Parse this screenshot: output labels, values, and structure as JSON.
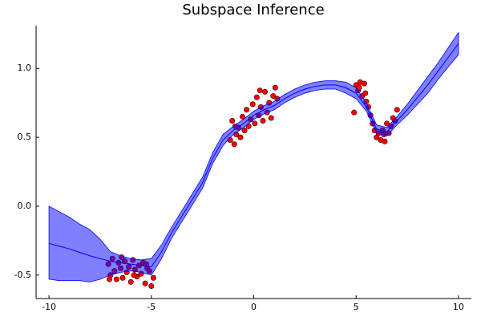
{
  "chart_data": {
    "type": "line",
    "title": "Subspace Inference",
    "x": [
      -10,
      -9.5,
      -9,
      -8.5,
      -8,
      -7.5,
      -7,
      -6.5,
      -6,
      -5.5,
      -5,
      -4.5,
      -4,
      -3.5,
      -3,
      -2.5,
      -2,
      -1.5,
      -1,
      -0.5,
      0,
      0.5,
      1,
      1.5,
      2,
      2.5,
      3,
      3.5,
      4,
      4.5,
      5,
      5.5,
      6,
      6.5,
      7,
      7.5,
      8,
      8.5,
      9,
      9.5,
      10
    ],
    "series": [
      {
        "color": "#0000ff",
        "band_alpha": 0.5,
        "values": [
          -0.27,
          -0.29,
          -0.31,
          -0.335,
          -0.36,
          -0.38,
          -0.4,
          -0.41,
          -0.42,
          -0.43,
          -0.44,
          -0.33,
          -0.19,
          -0.07,
          0.05,
          0.17,
          0.35,
          0.48,
          0.55,
          0.6,
          0.66,
          0.7,
          0.73,
          0.78,
          0.82,
          0.85,
          0.87,
          0.88,
          0.88,
          0.86,
          0.82,
          0.72,
          0.56,
          0.54,
          0.62,
          0.7,
          0.79,
          0.88,
          0.98,
          1.08,
          1.18
        ],
        "upper": [
          0,
          -0.04,
          -0.08,
          -0.13,
          -0.17,
          -0.24,
          -0.33,
          -0.36,
          -0.38,
          -0.39,
          -0.38,
          -0.28,
          -0.15,
          -0.03,
          0.09,
          0.21,
          0.39,
          0.52,
          0.58,
          0.63,
          0.69,
          0.73,
          0.76,
          0.81,
          0.85,
          0.88,
          0.9,
          0.91,
          0.91,
          0.9,
          0.86,
          0.75,
          0.59,
          0.57,
          0.65,
          0.74,
          0.84,
          0.94,
          1.04,
          1.15,
          1.26
        ],
        "lower": [
          -0.53,
          -0.54,
          -0.54,
          -0.54,
          -0.55,
          -0.53,
          -0.5,
          -0.48,
          -0.47,
          -0.48,
          -0.5,
          -0.38,
          -0.23,
          -0.11,
          0.01,
          0.13,
          0.31,
          0.44,
          0.52,
          0.57,
          0.63,
          0.67,
          0.7,
          0.75,
          0.79,
          0.82,
          0.84,
          0.85,
          0.85,
          0.82,
          0.78,
          0.69,
          0.53,
          0.51,
          0.59,
          0.66,
          0.74,
          0.82,
          0.92,
          1.01,
          1.1
        ]
      }
    ],
    "scatter": {
      "color": "#ff0000",
      "x": [
        -7.1,
        -7.0,
        -6.9,
        -6.8,
        -6.7,
        -6.6,
        -6.5,
        -6.4,
        -6.3,
        -6.2,
        -6.1,
        -6.0,
        -5.9,
        -5.8,
        -5.7,
        -5.6,
        -5.5,
        -5.4,
        -5.3,
        -5.2,
        -5.1,
        -5.0,
        -4.9,
        -7.05,
        -6.45,
        -5.85,
        -5.25,
        -1.15,
        -1.05,
        -0.95,
        -0.85,
        -0.75,
        -0.65,
        -0.55,
        -0.45,
        -0.35,
        -0.25,
        -0.15,
        -0.05,
        0.05,
        0.15,
        0.25,
        0.35,
        0.45,
        0.55,
        0.65,
        0.75,
        0.85,
        0.95,
        1.05,
        1.15,
        -0.9,
        0.3,
        4.9,
        5.0,
        5.1,
        5.2,
        5.3,
        5.4,
        5.5,
        5.6,
        5.7,
        5.8,
        5.9,
        6.0,
        6.1,
        6.2,
        6.3,
        6.4,
        6.5,
        6.6,
        6.7,
        6.8,
        6.9,
        7.0,
        5.15,
        5.45,
        6.35
      ],
      "y": [
        -0.42,
        -0.5,
        -0.38,
        -0.47,
        -0.53,
        -0.41,
        -0.45,
        -0.52,
        -0.4,
        -0.48,
        -0.44,
        -0.55,
        -0.39,
        -0.46,
        -0.51,
        -0.43,
        -0.49,
        -0.41,
        -0.56,
        -0.45,
        -0.47,
        -0.58,
        -0.52,
        -0.53,
        -0.37,
        -0.5,
        -0.42,
        0.48,
        0.62,
        0.45,
        0.52,
        0.57,
        0.5,
        0.65,
        0.55,
        0.7,
        0.58,
        0.63,
        0.74,
        0.6,
        0.79,
        0.66,
        0.72,
        0.62,
        0.83,
        0.68,
        0.75,
        0.64,
        0.8,
        0.86,
        0.78,
        0.58,
        0.84,
        0.68,
        0.88,
        0.84,
        0.9,
        0.8,
        0.89,
        0.76,
        0.72,
        0.66,
        0.6,
        0.55,
        0.5,
        0.53,
        0.48,
        0.55,
        0.47,
        0.6,
        0.53,
        0.58,
        0.64,
        0.62,
        0.7,
        0.86,
        0.82,
        0.52
      ]
    },
    "xlim": [
      -10.63,
      10.63
    ],
    "ylim": [
      -0.67,
      1.31
    ],
    "xticks": [
      -10,
      -5,
      0,
      5,
      10
    ],
    "yticks": [
      -0.5,
      {
        "value": 0,
        "label": "0.0"
      },
      0.5,
      {
        "value": 1,
        "label": "1.0"
      }
    ],
    "grid": false
  }
}
